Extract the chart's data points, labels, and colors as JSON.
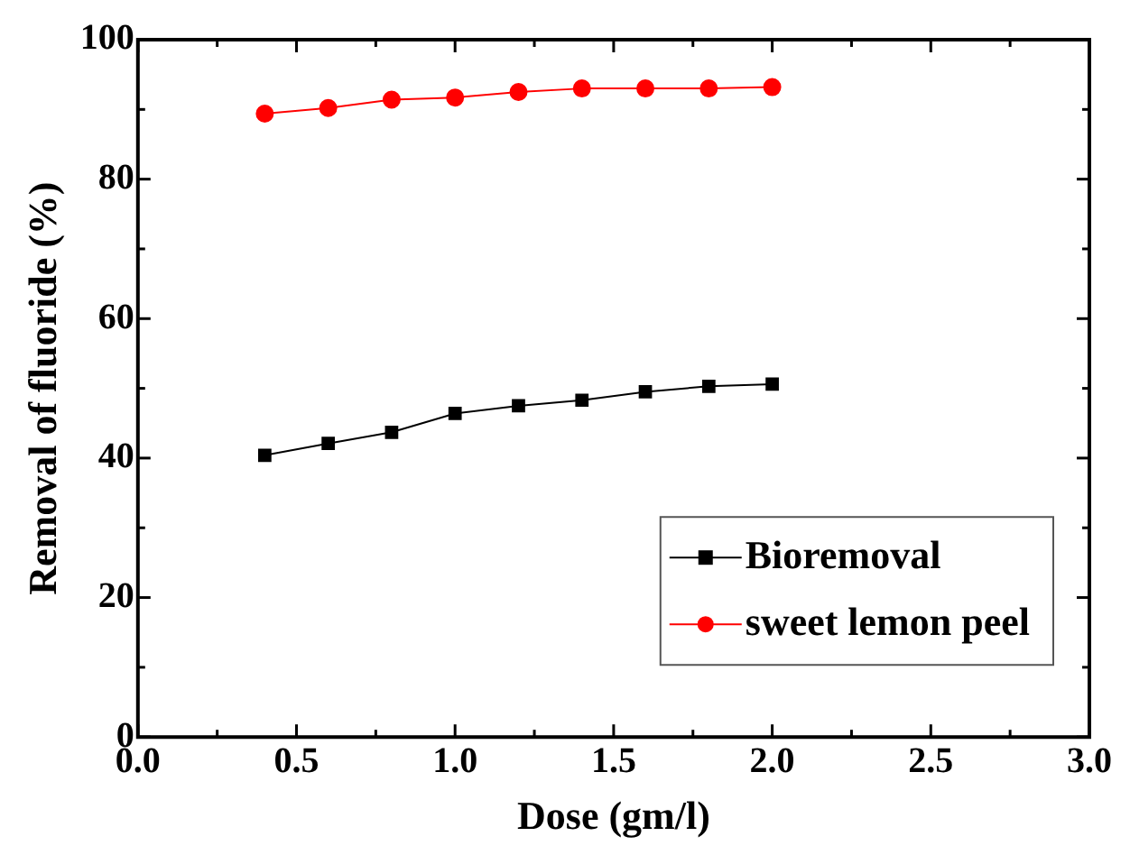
{
  "chart_data": {
    "type": "line",
    "xlabel": "Dose (gm/l)",
    "ylabel": "Removal of fluoride (%)",
    "x": [
      0.4,
      0.6,
      0.8,
      1.0,
      1.2,
      1.4,
      1.6,
      1.8,
      2.0
    ],
    "series": [
      {
        "name": "Bioremoval",
        "color": "#000000",
        "marker": "square",
        "values": [
          40.4,
          42.1,
          43.7,
          46.4,
          47.5,
          48.3,
          49.5,
          50.3,
          50.6
        ]
      },
      {
        "name": "sweet lemon peel",
        "color": "#ff0000",
        "marker": "circle",
        "values": [
          89.4,
          90.2,
          91.4,
          91.7,
          92.5,
          93.0,
          93.0,
          93.0,
          93.2
        ]
      }
    ],
    "xlim": [
      0,
      3
    ],
    "xticks": [
      {
        "value": 0,
        "label": "0.0"
      },
      {
        "value": 0.5,
        "label": "0.5"
      },
      {
        "value": 1,
        "label": "1.0"
      },
      {
        "value": 1.5,
        "label": "1.5"
      },
      {
        "value": 2,
        "label": "2.0"
      },
      {
        "value": 2.5,
        "label": "2.5"
      },
      {
        "value": 3,
        "label": "3.0"
      }
    ],
    "ylim": [
      0,
      100
    ],
    "yticks": [
      0,
      20,
      40,
      60,
      80,
      100
    ],
    "grid": false,
    "legend": "bottom right",
    "line_style": "solid"
  }
}
